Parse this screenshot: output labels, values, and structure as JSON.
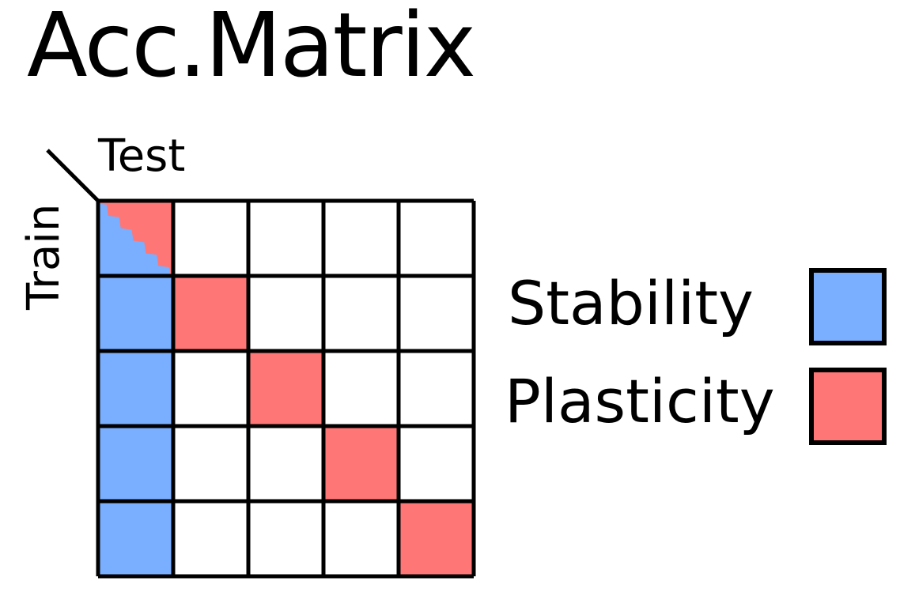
{
  "title": "Acc.Matrix",
  "axis": {
    "column_label": "Test",
    "row_label": "Train"
  },
  "matrix": {
    "size": 5,
    "cells": [
      [
        "stability/plasticity",
        "empty",
        "empty",
        "empty",
        "empty"
      ],
      [
        "stability",
        "plasticity",
        "empty",
        "empty",
        "empty"
      ],
      [
        "stability",
        "empty",
        "plasticity",
        "empty",
        "empty"
      ],
      [
        "stability",
        "empty",
        "empty",
        "plasticity",
        "empty"
      ],
      [
        "stability",
        "empty",
        "empty",
        "empty",
        "plasticity"
      ]
    ]
  },
  "legend": [
    {
      "key": "stability",
      "label": "Stability"
    },
    {
      "key": "plasticity",
      "label": "Plasticity"
    }
  ],
  "colors": {
    "stability": "#7aaeff",
    "plasticity": "#ff7676",
    "empty": "#ffffff",
    "border": "#000000"
  }
}
